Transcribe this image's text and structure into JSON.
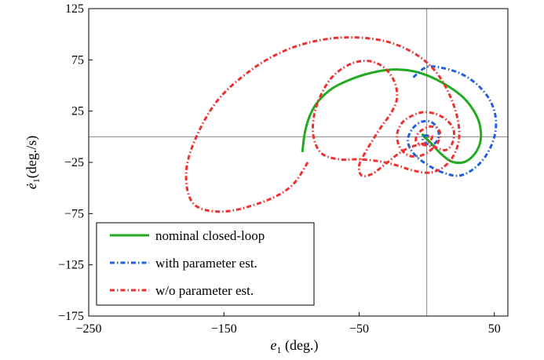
{
  "chart_data": {
    "type": "line",
    "xlabel": "e",
    "xlabel_sub": "1",
    "xlabel_unit": " (deg.)",
    "ylabel": "ė",
    "ylabel_sub": "1",
    "ylabel_unit": "(deg./s)",
    "xlim": [
      -250,
      60
    ],
    "ylim": [
      -175,
      125
    ],
    "x_ticks": [
      -250,
      -150,
      -50,
      50
    ],
    "y_ticks": [
      125,
      75,
      25,
      -25,
      -75,
      -125,
      -175
    ],
    "x_tick_labels": [
      "−250",
      "−150",
      "−50",
      "50"
    ],
    "y_tick_labels": [
      "125",
      "75",
      "25",
      "−25",
      "−75",
      "−125",
      "−175"
    ],
    "reference_lines": {
      "x": 0,
      "y": 0
    },
    "grid": false,
    "legend_position": "bottom-left",
    "series": [
      {
        "name": "nominal closed-loop",
        "color": "#22aa22",
        "style": "solid",
        "x": [
          -92,
          -90,
          -86,
          -80,
          -70,
          -58,
          -45,
          -30,
          -15,
          0,
          15,
          28,
          37,
          40,
          39,
          34,
          27,
          18,
          10,
          3,
          -2,
          -3,
          -1,
          1,
          0
        ],
        "y": [
          -15,
          5,
          22,
          35,
          47,
          55,
          61,
          65,
          65,
          60,
          50,
          37,
          20,
          5,
          -8,
          -19,
          -25,
          -24,
          -16,
          -6,
          0,
          2,
          1,
          0,
          0
        ]
      },
      {
        "name": "with parameter est.",
        "color": "#1f5fe0",
        "style": "dash-dot",
        "x": [
          -10,
          0,
          12,
          26,
          38,
          47,
          51,
          50,
          44,
          35,
          24,
          12,
          0,
          -10,
          -14,
          -11,
          -5,
          2,
          7,
          9,
          7,
          3,
          -1,
          -3,
          -1,
          1,
          0
        ],
        "y": [
          58,
          68,
          67,
          61,
          50,
          35,
          18,
          0,
          -18,
          -31,
          -38,
          -35,
          -27,
          -16,
          -4,
          7,
          14,
          15,
          10,
          2,
          -5,
          -8,
          -6,
          -2,
          1,
          1,
          0
        ]
      },
      {
        "name": "w/o parameter est.",
        "color": "#f03030",
        "style": "dash-dot",
        "x": [
          -88,
          -100,
          -120,
          -150,
          -172,
          -178,
          -172,
          -155,
          -130,
          -105,
          -80,
          -55,
          -30,
          -10,
          5,
          15,
          22,
          24,
          20,
          12,
          2,
          -10,
          -22,
          -35,
          -50,
          -65,
          -78,
          -84,
          -82,
          -72,
          -58,
          -44,
          -32,
          -24,
          -22,
          -26,
          -34,
          -44,
          -50,
          -48,
          -40,
          -30,
          -18,
          -6,
          5,
          14,
          19,
          20,
          15,
          7,
          -2,
          -10,
          -18,
          -22,
          -20,
          -14,
          -6,
          2,
          8,
          10,
          8,
          3,
          -3,
          -7,
          -8,
          -5,
          0,
          3,
          4,
          2,
          0
        ],
        "y": [
          -25,
          -48,
          -63,
          -73,
          -66,
          -38,
          -5,
          35,
          65,
          84,
          94,
          97,
          93,
          82,
          66,
          46,
          22,
          0,
          -18,
          -30,
          -35,
          -33,
          -28,
          -24,
          -22,
          -22,
          -16,
          2,
          28,
          55,
          70,
          74,
          68,
          54,
          38,
          24,
          9,
          -12,
          -28,
          -38,
          -36,
          -26,
          -14,
          -8,
          -10,
          -13,
          -6,
          6,
          16,
          22,
          24,
          21,
          14,
          2,
          -10,
          -18,
          -19,
          -14,
          -6,
          2,
          8,
          10,
          7,
          2,
          -4,
          -7,
          -6,
          -3,
          0,
          1,
          0
        ]
      }
    ]
  }
}
